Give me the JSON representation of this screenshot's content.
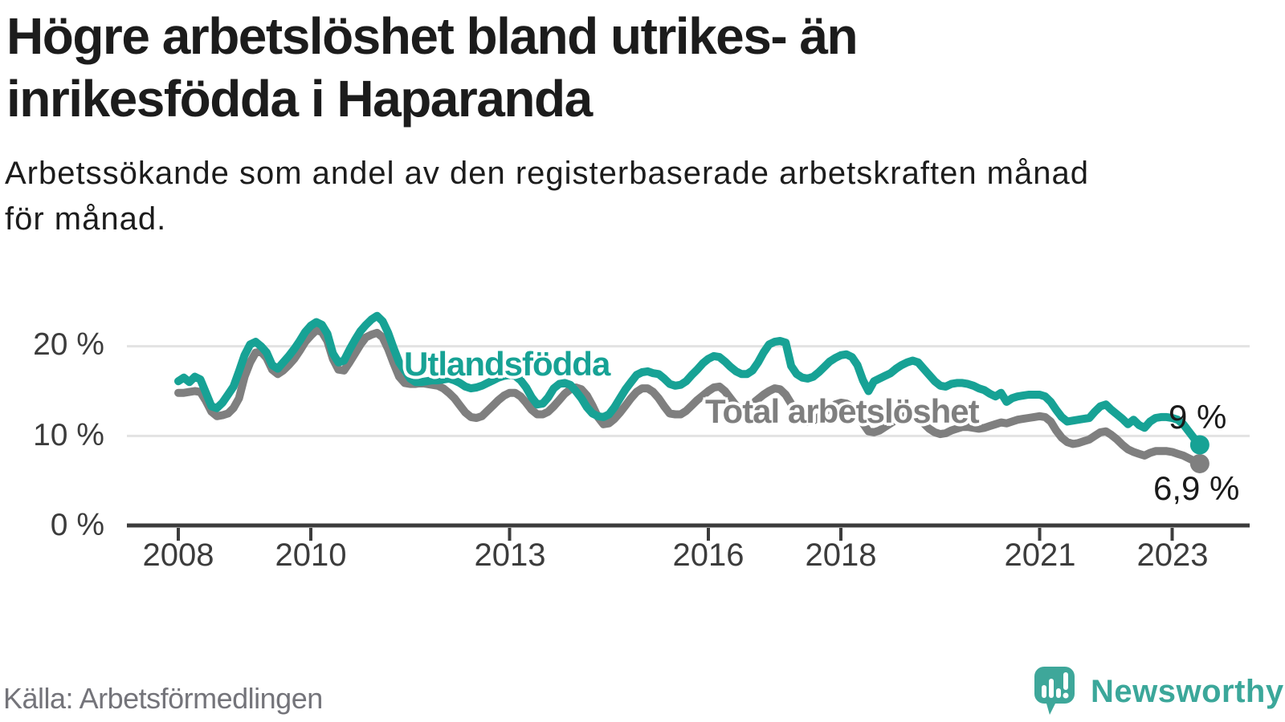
{
  "header": {
    "title_line1": "Högre arbetslöshet bland utrikes- än",
    "title_line2": "inrikesfödda i Haparanda",
    "subtitle_line1": "Arbetssökande som andel av den registerbaserade arbetskraften månad",
    "subtitle_line2": "för månad."
  },
  "footer": {
    "source": "Källa: Arbetsförmedlingen",
    "brand_name": "Newsworthy",
    "brand_logo_icon": "speech-bubble-bar-chart-icon",
    "brand_color": "#3ba79a"
  },
  "colors": {
    "foreign_born_line": "#17a295",
    "total_line": "#7f7f7f",
    "axis": "#3c3c3c",
    "gridline": "#e3e3e3",
    "text": "#1c1c1c",
    "muted_text": "#74747a"
  },
  "chart_data": {
    "type": "line",
    "title": "Högre arbetslöshet bland utrikes- än inrikesfödda i Haparanda",
    "subtitle": "Arbetssökande som andel av den registerbaserade arbetskraften månad för månad.",
    "x_unit": "month",
    "x_start_year": 2008.0,
    "x_step_years": 0.0833333,
    "x_ticks": [
      2008,
      2010,
      2013,
      2016,
      2018,
      2021,
      2023
    ],
    "y_ticks": [
      {
        "value": 0,
        "label": "0 %"
      },
      {
        "value": 10,
        "label": "10 %"
      },
      {
        "value": 20,
        "label": "20 %"
      }
    ],
    "ylim": [
      0,
      24.5
    ],
    "grid": "horizontal-only",
    "legend_position": "inline-labels",
    "series": [
      {
        "name": "Utlandsfödda",
        "color": "#17a295",
        "end_label": "9 %",
        "end_value": 9.0,
        "values": [
          16.1,
          16.5,
          16.0,
          16.6,
          16.3,
          14.8,
          13.3,
          13.1,
          13.7,
          14.6,
          15.5,
          17.2,
          19.0,
          20.2,
          20.5,
          20.0,
          19.3,
          17.9,
          17.5,
          18.2,
          18.9,
          19.7,
          20.6,
          21.6,
          22.3,
          22.7,
          22.4,
          21.4,
          19.2,
          18.2,
          18.4,
          19.6,
          20.7,
          21.7,
          22.4,
          23.0,
          23.4,
          22.8,
          21.5,
          19.8,
          18.2,
          17.3,
          16.4,
          16.0,
          16.0,
          16.1,
          16.2,
          16.2,
          16.3,
          16.4,
          16.2,
          15.9,
          15.5,
          15.3,
          15.4,
          15.6,
          15.9,
          16.2,
          16.5,
          16.7,
          16.8,
          16.7,
          16.2,
          15.4,
          14.3,
          13.5,
          13.6,
          14.3,
          15.3,
          15.8,
          15.9,
          15.7,
          15.0,
          14.2,
          13.2,
          12.5,
          12.2,
          12.1,
          12.4,
          13.2,
          14.2,
          15.2,
          16.0,
          16.8,
          17.1,
          17.2,
          17.0,
          16.9,
          16.4,
          15.8,
          15.6,
          15.7,
          16.1,
          16.8,
          17.4,
          18.1,
          18.6,
          18.9,
          18.8,
          18.3,
          17.7,
          17.2,
          16.9,
          16.9,
          17.3,
          18.2,
          19.3,
          20.2,
          20.5,
          20.6,
          20.4,
          17.8,
          16.9,
          16.5,
          16.4,
          16.6,
          17.1,
          17.7,
          18.3,
          18.7,
          19.0,
          19.1,
          18.8,
          17.9,
          16.2,
          15.0,
          16.1,
          16.4,
          16.7,
          17.0,
          17.5,
          17.9,
          18.2,
          18.4,
          18.2,
          17.5,
          16.8,
          16.1,
          15.6,
          15.5,
          15.8,
          15.9,
          15.9,
          15.8,
          15.6,
          15.3,
          15.1,
          14.7,
          14.4,
          14.8,
          13.8,
          14.2,
          14.4,
          14.5,
          14.6,
          14.6,
          14.6,
          14.4,
          13.8,
          12.9,
          12.1,
          11.6,
          11.7,
          11.8,
          11.9,
          12.0,
          12.7,
          13.3,
          13.5,
          12.9,
          12.4,
          11.9,
          11.3,
          11.8,
          11.2,
          10.9,
          11.6,
          12.0,
          12.1,
          12.1,
          12.0,
          11.8,
          11.3,
          10.5,
          9.7,
          9.0
        ]
      },
      {
        "name": "Total arbetslöshet",
        "color": "#7f7f7f",
        "end_label": "6,9 %",
        "end_value": 6.9,
        "values": [
          14.8,
          14.8,
          14.9,
          15.0,
          14.9,
          13.9,
          12.7,
          12.2,
          12.3,
          12.5,
          13.1,
          14.2,
          16.6,
          18.2,
          19.3,
          19.4,
          18.7,
          17.4,
          16.9,
          17.3,
          17.9,
          18.6,
          19.5,
          20.5,
          21.2,
          21.8,
          21.6,
          20.6,
          18.6,
          17.4,
          17.3,
          18.2,
          19.2,
          20.2,
          21.0,
          21.3,
          21.5,
          21.0,
          19.7,
          18.1,
          16.6,
          15.9,
          15.8,
          15.8,
          15.9,
          15.8,
          15.7,
          15.6,
          15.3,
          14.8,
          14.2,
          13.4,
          12.6,
          12.1,
          12.0,
          12.2,
          12.8,
          13.4,
          14.0,
          14.5,
          14.8,
          14.8,
          14.4,
          13.7,
          12.9,
          12.4,
          12.4,
          12.7,
          13.3,
          14.0,
          14.7,
          15.2,
          15.4,
          15.2,
          14.5,
          13.4,
          12.1,
          11.3,
          11.4,
          11.9,
          12.6,
          13.4,
          14.2,
          14.9,
          15.3,
          15.3,
          14.9,
          14.2,
          13.3,
          12.5,
          12.4,
          12.4,
          12.8,
          13.4,
          14.0,
          14.5,
          15.0,
          15.4,
          15.5,
          15.0,
          14.2,
          13.4,
          13.0,
          13.2,
          13.6,
          14.1,
          14.6,
          15.0,
          15.3,
          15.2,
          14.6,
          13.6,
          12.6,
          11.9,
          11.6,
          11.7,
          12.1,
          12.6,
          13.1,
          13.5,
          13.7,
          13.6,
          13.2,
          12.4,
          11.4,
          10.5,
          10.4,
          10.6,
          11.0,
          11.4,
          11.8,
          12.1,
          12.3,
          12.3,
          12.0,
          11.4,
          10.8,
          10.4,
          10.2,
          10.3,
          10.6,
          10.8,
          11.0,
          11.0,
          10.9,
          10.8,
          10.9,
          11.1,
          11.3,
          11.5,
          11.4,
          11.6,
          11.8,
          11.9,
          12.0,
          12.1,
          12.2,
          12.1,
          11.6,
          10.6,
          9.8,
          9.3,
          9.1,
          9.2,
          9.4,
          9.6,
          10.0,
          10.4,
          10.5,
          10.1,
          9.6,
          9.0,
          8.5,
          8.2,
          8.0,
          7.8,
          8.1,
          8.3,
          8.3,
          8.3,
          8.2,
          8.0,
          7.8,
          7.5,
          7.2,
          6.9
        ]
      }
    ]
  }
}
